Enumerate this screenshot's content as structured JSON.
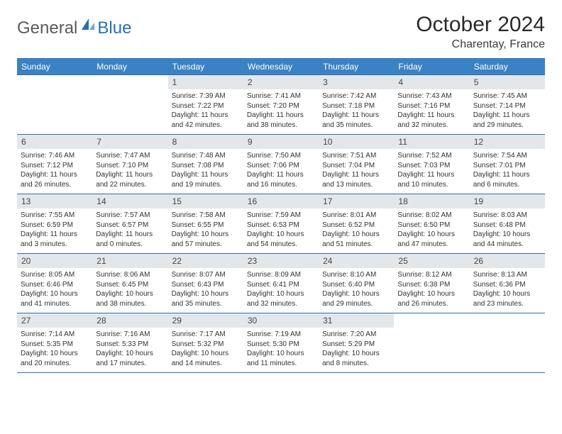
{
  "brand": {
    "part1": "General",
    "part2": "Blue"
  },
  "title": "October 2024",
  "location": "Charentay, France",
  "colors": {
    "accent": "#3b82c4",
    "accent_dark": "#2a6fb5",
    "daynum_bg": "#e4e7ea",
    "text": "#333333",
    "background": "#ffffff"
  },
  "days_of_week": [
    "Sunday",
    "Monday",
    "Tuesday",
    "Wednesday",
    "Thursday",
    "Friday",
    "Saturday"
  ],
  "weeks": [
    [
      {
        "n": "",
        "sr": "",
        "ss": "",
        "dl": ""
      },
      {
        "n": "",
        "sr": "",
        "ss": "",
        "dl": ""
      },
      {
        "n": "1",
        "sr": "7:39 AM",
        "ss": "7:22 PM",
        "dl": "11 hours and 42 minutes."
      },
      {
        "n": "2",
        "sr": "7:41 AM",
        "ss": "7:20 PM",
        "dl": "11 hours and 38 minutes."
      },
      {
        "n": "3",
        "sr": "7:42 AM",
        "ss": "7:18 PM",
        "dl": "11 hours and 35 minutes."
      },
      {
        "n": "4",
        "sr": "7:43 AM",
        "ss": "7:16 PM",
        "dl": "11 hours and 32 minutes."
      },
      {
        "n": "5",
        "sr": "7:45 AM",
        "ss": "7:14 PM",
        "dl": "11 hours and 29 minutes."
      }
    ],
    [
      {
        "n": "6",
        "sr": "7:46 AM",
        "ss": "7:12 PM",
        "dl": "11 hours and 26 minutes."
      },
      {
        "n": "7",
        "sr": "7:47 AM",
        "ss": "7:10 PM",
        "dl": "11 hours and 22 minutes."
      },
      {
        "n": "8",
        "sr": "7:48 AM",
        "ss": "7:08 PM",
        "dl": "11 hours and 19 minutes."
      },
      {
        "n": "9",
        "sr": "7:50 AM",
        "ss": "7:06 PM",
        "dl": "11 hours and 16 minutes."
      },
      {
        "n": "10",
        "sr": "7:51 AM",
        "ss": "7:04 PM",
        "dl": "11 hours and 13 minutes."
      },
      {
        "n": "11",
        "sr": "7:52 AM",
        "ss": "7:03 PM",
        "dl": "11 hours and 10 minutes."
      },
      {
        "n": "12",
        "sr": "7:54 AM",
        "ss": "7:01 PM",
        "dl": "11 hours and 6 minutes."
      }
    ],
    [
      {
        "n": "13",
        "sr": "7:55 AM",
        "ss": "6:59 PM",
        "dl": "11 hours and 3 minutes."
      },
      {
        "n": "14",
        "sr": "7:57 AM",
        "ss": "6:57 PM",
        "dl": "11 hours and 0 minutes."
      },
      {
        "n": "15",
        "sr": "7:58 AM",
        "ss": "6:55 PM",
        "dl": "10 hours and 57 minutes."
      },
      {
        "n": "16",
        "sr": "7:59 AM",
        "ss": "6:53 PM",
        "dl": "10 hours and 54 minutes."
      },
      {
        "n": "17",
        "sr": "8:01 AM",
        "ss": "6:52 PM",
        "dl": "10 hours and 51 minutes."
      },
      {
        "n": "18",
        "sr": "8:02 AM",
        "ss": "6:50 PM",
        "dl": "10 hours and 47 minutes."
      },
      {
        "n": "19",
        "sr": "8:03 AM",
        "ss": "6:48 PM",
        "dl": "10 hours and 44 minutes."
      }
    ],
    [
      {
        "n": "20",
        "sr": "8:05 AM",
        "ss": "6:46 PM",
        "dl": "10 hours and 41 minutes."
      },
      {
        "n": "21",
        "sr": "8:06 AM",
        "ss": "6:45 PM",
        "dl": "10 hours and 38 minutes."
      },
      {
        "n": "22",
        "sr": "8:07 AM",
        "ss": "6:43 PM",
        "dl": "10 hours and 35 minutes."
      },
      {
        "n": "23",
        "sr": "8:09 AM",
        "ss": "6:41 PM",
        "dl": "10 hours and 32 minutes."
      },
      {
        "n": "24",
        "sr": "8:10 AM",
        "ss": "6:40 PM",
        "dl": "10 hours and 29 minutes."
      },
      {
        "n": "25",
        "sr": "8:12 AM",
        "ss": "6:38 PM",
        "dl": "10 hours and 26 minutes."
      },
      {
        "n": "26",
        "sr": "8:13 AM",
        "ss": "6:36 PM",
        "dl": "10 hours and 23 minutes."
      }
    ],
    [
      {
        "n": "27",
        "sr": "7:14 AM",
        "ss": "5:35 PM",
        "dl": "10 hours and 20 minutes."
      },
      {
        "n": "28",
        "sr": "7:16 AM",
        "ss": "5:33 PM",
        "dl": "10 hours and 17 minutes."
      },
      {
        "n": "29",
        "sr": "7:17 AM",
        "ss": "5:32 PM",
        "dl": "10 hours and 14 minutes."
      },
      {
        "n": "30",
        "sr": "7:19 AM",
        "ss": "5:30 PM",
        "dl": "10 hours and 11 minutes."
      },
      {
        "n": "31",
        "sr": "7:20 AM",
        "ss": "5:29 PM",
        "dl": "10 hours and 8 minutes."
      },
      {
        "n": "",
        "sr": "",
        "ss": "",
        "dl": ""
      },
      {
        "n": "",
        "sr": "",
        "ss": "",
        "dl": ""
      }
    ]
  ],
  "labels": {
    "sunrise": "Sunrise: ",
    "sunset": "Sunset: ",
    "daylight": "Daylight: "
  }
}
